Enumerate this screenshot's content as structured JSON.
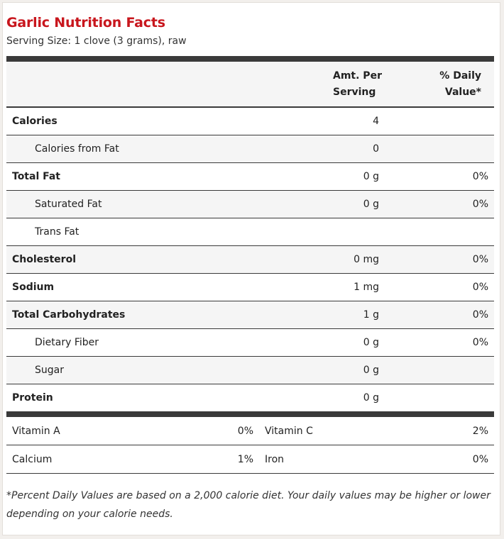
{
  "title": "Garlic Nutrition Facts",
  "serving": "Serving Size: 1 clove (3 grams), raw",
  "header": {
    "amt_line1": "Amt. Per",
    "amt_line2": "Serving",
    "dv_line1": "% Daily",
    "dv_line2": "Value*"
  },
  "nutrients": [
    {
      "name": "Calories",
      "amount": "4",
      "dv": ""
    },
    {
      "name": "Calories from Fat",
      "amount": "0",
      "dv": ""
    },
    {
      "name": "Total Fat",
      "amount": "0 g",
      "dv": "0%"
    },
    {
      "name": "Saturated Fat",
      "amount": "0 g",
      "dv": "0%"
    },
    {
      "name": "Trans Fat",
      "amount": "",
      "dv": ""
    },
    {
      "name": "Cholesterol",
      "amount": "0 mg",
      "dv": "0%"
    },
    {
      "name": "Sodium",
      "amount": "1 mg",
      "dv": "0%"
    },
    {
      "name": "Total Carbohydrates",
      "amount": "1 g",
      "dv": "0%"
    },
    {
      "name": "Dietary Fiber",
      "amount": "0 g",
      "dv": "0%"
    },
    {
      "name": "Sugar",
      "amount": "0 g",
      "dv": ""
    },
    {
      "name": "Protein",
      "amount": "0 g",
      "dv": ""
    }
  ],
  "vitamins": [
    {
      "name1": "Vitamin A",
      "val1": "0%",
      "name2": "Vitamin C",
      "val2": "2%"
    },
    {
      "name1": "Calcium",
      "val1": "1%",
      "name2": "Iron",
      "val2": "0%"
    }
  ],
  "footnote": "*Percent Daily Values are based on a 2,000 calorie diet. Your daily values may be higher or lower depending on your calorie needs.",
  "colors": {
    "title": "#c8161d",
    "rule": "#3a3a3a"
  }
}
